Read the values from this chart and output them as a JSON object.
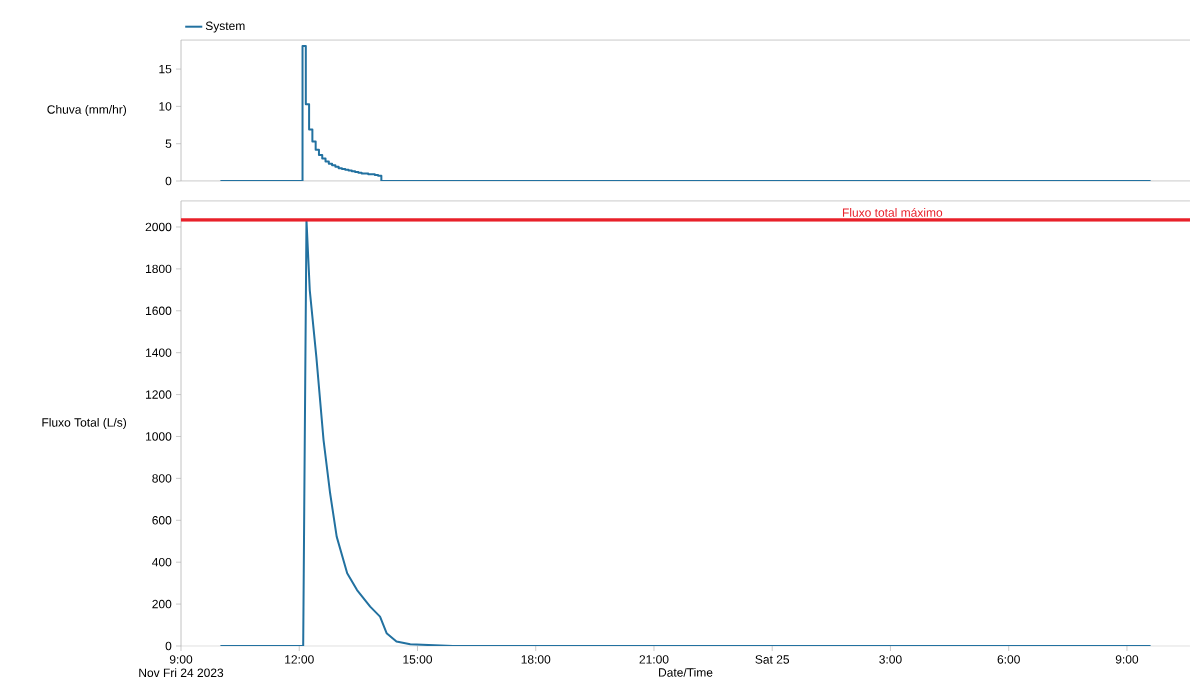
{
  "chart_data": [
    {
      "type": "step",
      "ylabel": "Chuva (mm/hr)",
      "xlim": [
        "2023-11-24T09:00",
        "2023-11-25T10:36"
      ],
      "ylim": [
        0,
        18.9
      ],
      "yticks": [
        0,
        5,
        10,
        15
      ],
      "tick_labels": "y",
      "legend": "top left",
      "series": [
        {
          "name": "System",
          "color": "#2271a0",
          "x": [
            "2023-11-24T10:00",
            "2023-11-24T12:05",
            "2023-11-24T12:10",
            "2023-11-24T12:15",
            "2023-11-24T12:20",
            "2023-11-24T12:25",
            "2023-11-24T12:30",
            "2023-11-24T12:35",
            "2023-11-24T12:40",
            "2023-11-24T12:45",
            "2023-11-24T12:50",
            "2023-11-24T12:55",
            "2023-11-24T13:00",
            "2023-11-24T13:05",
            "2023-11-24T13:10",
            "2023-11-24T13:15",
            "2023-11-24T13:20",
            "2023-11-24T13:25",
            "2023-11-24T13:30",
            "2023-11-24T13:35",
            "2023-11-24T13:40",
            "2023-11-24T13:45",
            "2023-11-24T13:50",
            "2023-11-24T13:55",
            "2023-11-24T14:00",
            "2023-11-24T14:05",
            "2023-11-25T09:36"
          ],
          "values": [
            0,
            18.1,
            10.3,
            6.9,
            5.3,
            4.2,
            3.5,
            3.0,
            2.6,
            2.3,
            2.1,
            1.9,
            1.7,
            1.6,
            1.5,
            1.4,
            1.3,
            1.2,
            1.1,
            1.0,
            1.0,
            0.9,
            0.9,
            0.8,
            0.7,
            0,
            0
          ]
        }
      ]
    },
    {
      "type": "line",
      "ylabel": "Fluxo Total (L/s)",
      "xlabel": "Date/Time",
      "xlim": [
        "2023-11-24T09:00",
        "2023-11-25T10:36"
      ],
      "ylim": [
        0,
        2124
      ],
      "yticks": [
        0,
        200,
        400,
        600,
        800,
        1000,
        1200,
        1400,
        1600,
        1800,
        2000
      ],
      "xticks": [
        {
          "value": "2023-11-24T09:00",
          "label": "9:00"
        },
        {
          "value": "2023-11-24T12:00",
          "label": "12:00"
        },
        {
          "value": "2023-11-24T15:00",
          "label": "15:00"
        },
        {
          "value": "2023-11-24T18:00",
          "label": "18:00"
        },
        {
          "value": "2023-11-24T21:00",
          "label": "21:00"
        },
        {
          "value": "2023-11-25T00:00",
          "label": "Sat 25"
        },
        {
          "value": "2023-11-25T03:00",
          "label": "3:00"
        },
        {
          "value": "2023-11-25T06:00",
          "label": "6:00"
        },
        {
          "value": "2023-11-25T09:00",
          "label": "9:00"
        }
      ],
      "annotations": [
        "Nov Fri 24 2023"
      ],
      "ref_lines": [
        {
          "axis": "y",
          "value": 2033,
          "label": "Fluxo total máximo",
          "color": "#e8202a"
        }
      ],
      "series": [
        {
          "color": "#2271a0",
          "x": [
            "2023-11-24T10:00",
            "2023-11-24T12:06",
            "2023-11-24T12:11",
            "2023-11-24T12:16",
            "2023-11-24T12:26",
            "2023-11-24T12:37",
            "2023-11-24T12:47",
            "2023-11-24T12:57",
            "2023-11-24T13:13",
            "2023-11-24T13:28",
            "2023-11-24T13:48",
            "2023-11-24T14:03",
            "2023-11-24T14:13",
            "2023-11-24T14:28",
            "2023-11-24T14:49",
            "2023-11-24T15:54",
            "2023-11-25T09:36"
          ],
          "values": [
            0,
            0,
            2033,
            1699,
            1381,
            983,
            729,
            522,
            347,
            267,
            188,
            140,
            61,
            21,
            8,
            0,
            0
          ]
        }
      ]
    }
  ]
}
